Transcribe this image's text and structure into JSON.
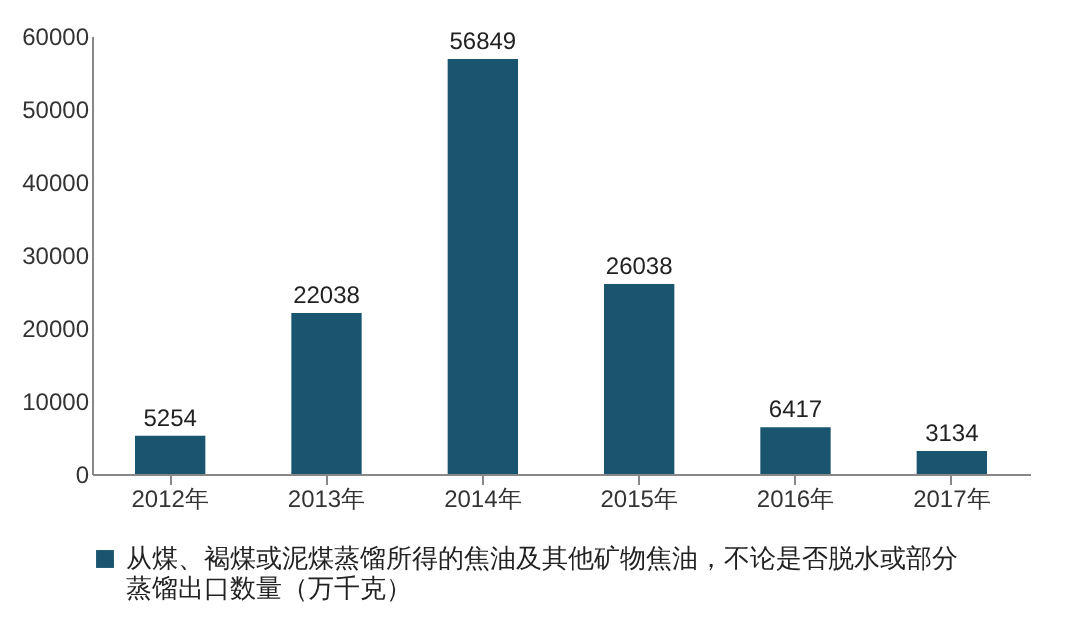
{
  "chart_data": {
    "type": "bar",
    "categories": [
      "2012年",
      "2013年",
      "2014年",
      "2015年",
      "2016年",
      "2017年"
    ],
    "series": [
      {
        "name": "从煤、褐煤或泥煤蒸馏所得的焦油及其他矿物焦油，不论是否脱水或部分蒸馏出口数量（万千克）",
        "color": "#1a5570",
        "values": [
          5254,
          22038,
          56849,
          26038,
          6417,
          3134
        ]
      }
    ],
    "ylim": [
      0,
      60000
    ],
    "yticks": [
      0,
      10000,
      20000,
      30000,
      40000,
      50000,
      60000
    ],
    "data_labels": true,
    "legend": "bottom",
    "grid": false
  }
}
